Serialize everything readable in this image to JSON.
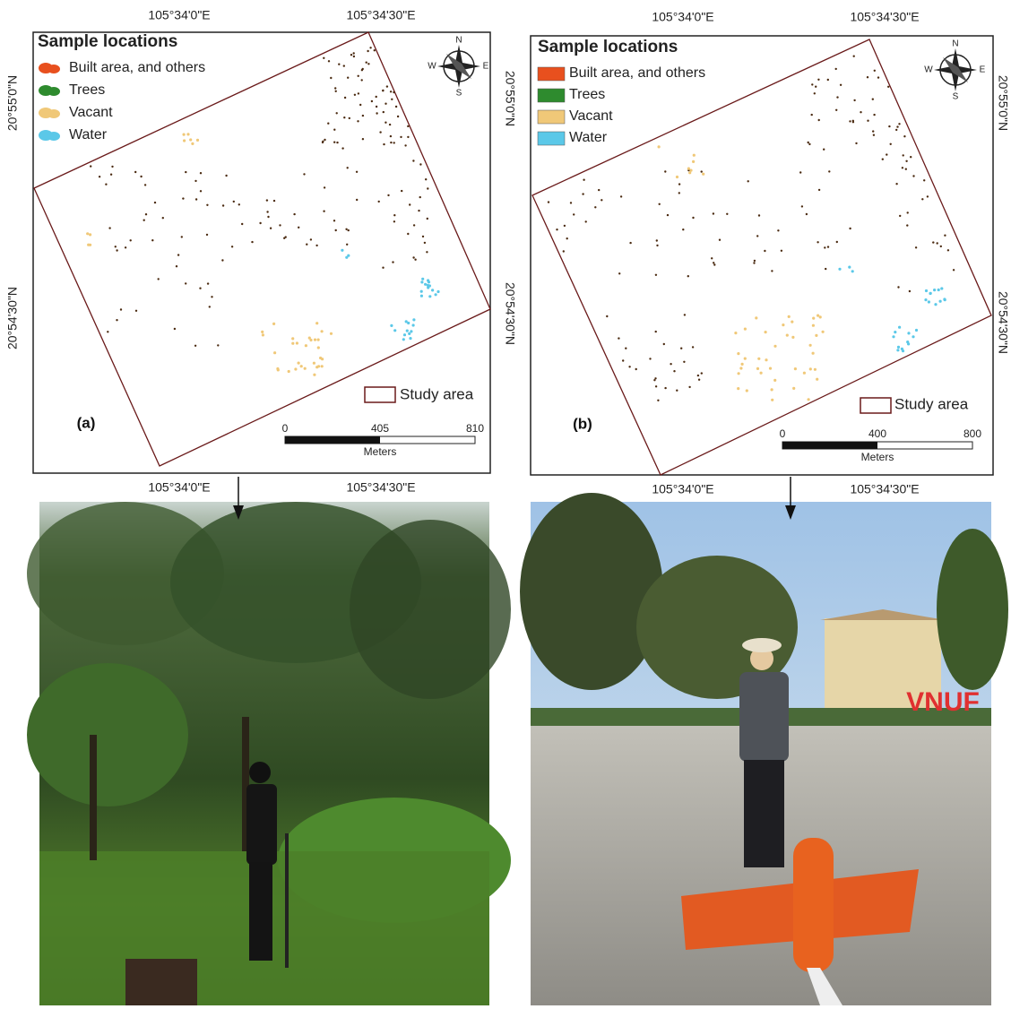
{
  "panels": [
    {
      "label": "(a)",
      "legend": {
        "title": "Sample locations",
        "items": [
          {
            "name": "Built area, and others",
            "color": "#e8501e"
          },
          {
            "name": "Trees",
            "color": "#2e8b2e"
          },
          {
            "name": "Vacant",
            "color": "#f0c878"
          },
          {
            "name": "Water",
            "color": "#5bc8e8"
          }
        ]
      },
      "top_ticks": [
        "105°34'0\"E",
        "105°34'30\"E"
      ],
      "bottom_ticks": [
        "105°34'0\"E",
        "105°34'30\"E"
      ],
      "left_ticks": [
        "20°55'0\"N",
        "20°54'30\"N"
      ],
      "right_ticks": [
        "20°55'0\"N",
        "20°54'30\"N"
      ],
      "compass": {
        "n": "N",
        "s": "S",
        "e": "E",
        "w": "W"
      },
      "study_area": "Study area",
      "scale": {
        "ticks": [
          0,
          405,
          810
        ],
        "unit": "Meters"
      }
    },
    {
      "label": "(b)",
      "legend": {
        "title": "Sample locations",
        "items": [
          {
            "name": "Built area, and others",
            "color": "#e8501e"
          },
          {
            "name": "Trees",
            "color": "#2e8b2e"
          },
          {
            "name": "Vacant",
            "color": "#f0c878"
          },
          {
            "name": "Water",
            "color": "#5bc8e8"
          }
        ]
      },
      "top_ticks": [
        "105°34'0\"E",
        "105°34'30\"E"
      ],
      "bottom_ticks": [
        "105°34'0\"E",
        "105°34'30\"E"
      ],
      "right_ticks": [
        "20°55'0\"N",
        "20°54'30\"N"
      ],
      "compass": {
        "n": "N",
        "s": "S",
        "e": "E",
        "w": "W"
      },
      "study_area": "Study area",
      "scale": {
        "ticks": [
          0,
          400,
          800
        ],
        "unit": "Meters"
      }
    }
  ],
  "photos": {
    "sign": "VNUF"
  }
}
